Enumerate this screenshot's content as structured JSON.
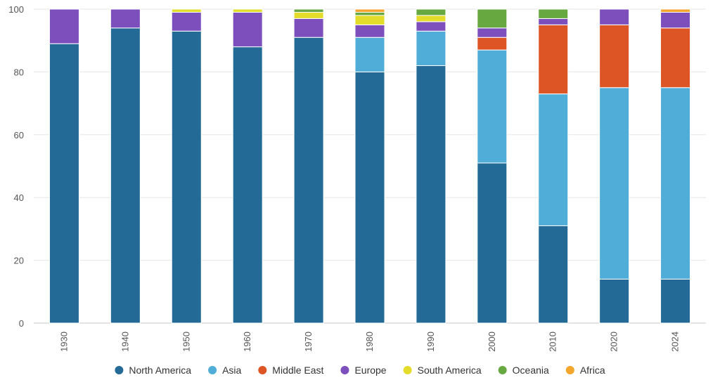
{
  "chart_data": {
    "type": "bar",
    "stacked": true,
    "title": "",
    "xlabel": "",
    "ylabel": "",
    "ylim": [
      0,
      100
    ],
    "yticks": [
      0,
      20,
      40,
      60,
      80,
      100
    ],
    "grid": true,
    "legend_position": "bottom",
    "categories": [
      "1930",
      "1940",
      "1950",
      "1960",
      "1970",
      "1980",
      "1990",
      "2000",
      "2010",
      "2020",
      "2024"
    ],
    "series": [
      {
        "name": "North America",
        "color": "#236b96",
        "values": [
          89,
          94,
          93,
          88,
          91,
          80,
          82,
          51,
          31,
          14,
          14
        ]
      },
      {
        "name": "Asia",
        "color": "#4fadd8",
        "values": [
          0,
          0,
          0,
          0,
          0,
          11,
          11,
          36,
          42,
          61,
          61
        ]
      },
      {
        "name": "Middle East",
        "color": "#dd5524",
        "values": [
          0,
          0,
          0,
          0,
          0,
          0,
          0,
          4,
          22,
          20,
          19
        ]
      },
      {
        "name": "Europe",
        "color": "#7c4fbd",
        "values": [
          11,
          6,
          6,
          11,
          6,
          4,
          3,
          3,
          2,
          5,
          5
        ]
      },
      {
        "name": "South America",
        "color": "#e4dc2b",
        "values": [
          0,
          0,
          1,
          1,
          2,
          3,
          2,
          0,
          0,
          0,
          0
        ]
      },
      {
        "name": "Oceania",
        "color": "#67a840",
        "values": [
          0,
          0,
          0,
          0,
          1,
          1,
          2,
          6,
          3,
          0,
          0
        ]
      },
      {
        "name": "Africa",
        "color": "#f4a52b",
        "values": [
          0,
          0,
          0,
          0,
          0,
          1,
          0,
          0,
          0,
          0,
          1
        ]
      }
    ]
  }
}
